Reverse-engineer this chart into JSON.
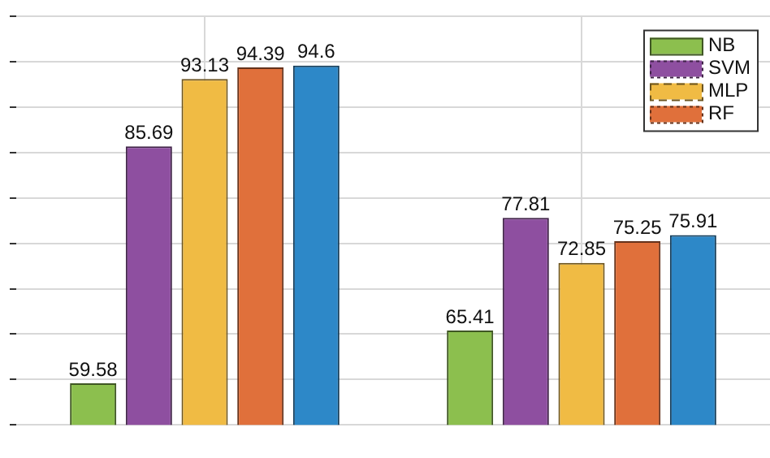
{
  "chart_data": {
    "type": "bar",
    "categories": [
      null,
      null
    ],
    "series": [
      {
        "name": "NB",
        "color": "#8cbf4e",
        "values": [
          59.58,
          65.41
        ],
        "line_style": "solid"
      },
      {
        "name": "SVM",
        "color": "#8e4fa0",
        "values": [
          85.69,
          77.81
        ],
        "line_style": "dotted"
      },
      {
        "name": "MLP",
        "color": "#f0bb44",
        "values": [
          93.13,
          72.85
        ],
        "line_style": "dashed"
      },
      {
        "name": "RF",
        "color": "#e0703b",
        "values": [
          94.39,
          75.25
        ],
        "line_style": "dotted"
      },
      {
        "color": "#2d88c8",
        "values": [
          94.6,
          75.91
        ],
        "line_style": "solid"
      }
    ],
    "ylim": [
      55,
      100
    ],
    "yticks": [
      {
        "value": 55,
        "label": null
      },
      {
        "value": 60,
        "label": null
      },
      {
        "value": 65,
        "label": null
      },
      {
        "value": 70,
        "label": null
      },
      {
        "value": 75,
        "label": null
      },
      {
        "value": 80,
        "label": null
      },
      {
        "value": 85,
        "label": null
      },
      {
        "value": 90,
        "label": null
      },
      {
        "value": 95,
        "label": null
      },
      {
        "value": 100,
        "label": null
      }
    ],
    "grid": true,
    "legend": "top right",
    "data_labels": true
  }
}
